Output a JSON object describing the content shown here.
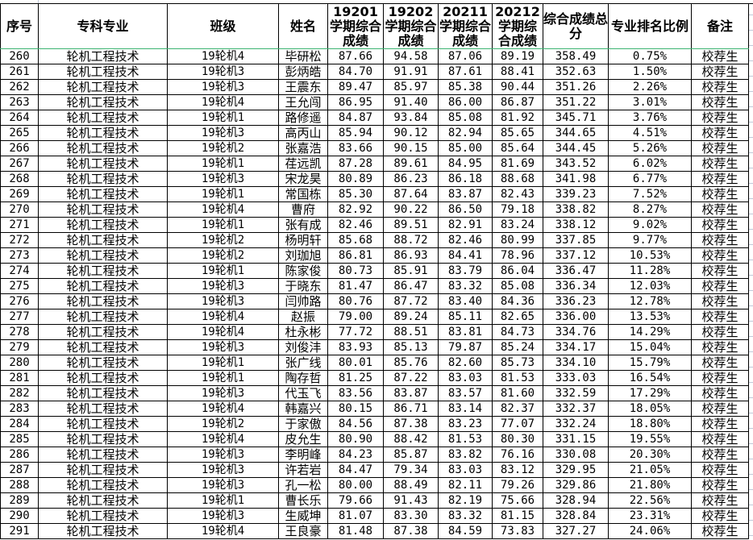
{
  "headers": [
    "序号",
    "专科专业",
    "班级",
    "姓名",
    "19201学期综合成绩",
    "19202学期综合成绩",
    "20211学期综合成绩",
    "20212学期综合成绩",
    "综合成绩总分",
    "专业排名比例",
    "备注"
  ],
  "rows": [
    [
      "260",
      "轮机工程技术",
      "19轮机4",
      "毕研松",
      "87.66",
      "94.58",
      "87.06",
      "89.19",
      "358.49",
      "0.75%",
      "校荐生"
    ],
    [
      "261",
      "轮机工程技术",
      "19轮机3",
      "彭炳皓",
      "84.70",
      "91.91",
      "87.61",
      "88.41",
      "352.63",
      "1.50%",
      "校荐生"
    ],
    [
      "262",
      "轮机工程技术",
      "19轮机3",
      "王震东",
      "89.47",
      "85.97",
      "85.38",
      "90.44",
      "351.26",
      "2.26%",
      "校荐生"
    ],
    [
      "263",
      "轮机工程技术",
      "19轮机4",
      "王允闯",
      "86.95",
      "91.40",
      "86.00",
      "86.87",
      "351.22",
      "3.01%",
      "校荐生"
    ],
    [
      "264",
      "轮机工程技术",
      "19轮机1",
      "路修遥",
      "84.87",
      "93.84",
      "85.08",
      "81.92",
      "345.71",
      "3.76%",
      "校荐生"
    ],
    [
      "265",
      "轮机工程技术",
      "19轮机3",
      "高丙山",
      "85.94",
      "90.12",
      "82.94",
      "85.65",
      "344.65",
      "4.51%",
      "校荐生"
    ],
    [
      "266",
      "轮机工程技术",
      "19轮机2",
      "张嘉浩",
      "83.66",
      "90.15",
      "85.00",
      "85.64",
      "344.45",
      "5.26%",
      "校荐生"
    ],
    [
      "267",
      "轮机工程技术",
      "19轮机1",
      "荏远凯",
      "87.28",
      "89.61",
      "84.95",
      "81.69",
      "343.52",
      "6.02%",
      "校荐生"
    ],
    [
      "268",
      "轮机工程技术",
      "19轮机3",
      "宋龙昊",
      "80.89",
      "86.23",
      "86.18",
      "88.68",
      "341.98",
      "6.77%",
      "校荐生"
    ],
    [
      "269",
      "轮机工程技术",
      "19轮机1",
      "常国栋",
      "85.30",
      "87.64",
      "83.87",
      "82.43",
      "339.23",
      "7.52%",
      "校荐生"
    ],
    [
      "270",
      "轮机工程技术",
      "19轮机4",
      "曹府",
      "82.92",
      "90.22",
      "86.50",
      "79.18",
      "338.82",
      "8.27%",
      "校荐生"
    ],
    [
      "271",
      "轮机工程技术",
      "19轮机1",
      "张有成",
      "82.46",
      "89.51",
      "82.91",
      "83.24",
      "338.12",
      "9.02%",
      "校荐生"
    ],
    [
      "272",
      "轮机工程技术",
      "19轮机2",
      "杨明轩",
      "85.68",
      "88.72",
      "82.46",
      "80.99",
      "337.85",
      "9.77%",
      "校荐生"
    ],
    [
      "273",
      "轮机工程技术",
      "19轮机2",
      "刘珈旭",
      "86.81",
      "86.93",
      "84.41",
      "78.96",
      "337.12",
      "10.53%",
      "校荐生"
    ],
    [
      "274",
      "轮机工程技术",
      "19轮机1",
      "陈家俊",
      "80.73",
      "85.91",
      "83.79",
      "86.04",
      "336.47",
      "11.28%",
      "校荐生"
    ],
    [
      "275",
      "轮机工程技术",
      "19轮机3",
      "于晓东",
      "81.47",
      "86.47",
      "83.32",
      "85.08",
      "336.34",
      "12.03%",
      "校荐生"
    ],
    [
      "276",
      "轮机工程技术",
      "19轮机3",
      "闫帅路",
      "80.76",
      "87.72",
      "83.40",
      "84.36",
      "336.23",
      "12.78%",
      "校荐生"
    ],
    [
      "277",
      "轮机工程技术",
      "19轮机4",
      "赵振",
      "79.00",
      "89.24",
      "85.11",
      "82.65",
      "336.00",
      "13.53%",
      "校荐生"
    ],
    [
      "278",
      "轮机工程技术",
      "19轮机4",
      "杜永彬",
      "77.72",
      "88.51",
      "83.81",
      "84.73",
      "334.76",
      "14.29%",
      "校荐生"
    ],
    [
      "279",
      "轮机工程技术",
      "19轮机3",
      "刘俊沣",
      "83.93",
      "85.13",
      "79.87",
      "85.24",
      "334.17",
      "15.04%",
      "校荐生"
    ],
    [
      "280",
      "轮机工程技术",
      "19轮机1",
      "张广线",
      "80.01",
      "85.76",
      "82.60",
      "85.73",
      "334.10",
      "15.79%",
      "校荐生"
    ],
    [
      "281",
      "轮机工程技术",
      "19轮机1",
      "陶存哲",
      "81.25",
      "87.22",
      "83.03",
      "81.53",
      "333.03",
      "16.54%",
      "校荐生"
    ],
    [
      "282",
      "轮机工程技术",
      "19轮机3",
      "代玉飞",
      "83.56",
      "83.87",
      "83.57",
      "81.60",
      "332.59",
      "17.29%",
      "校荐生"
    ],
    [
      "283",
      "轮机工程技术",
      "19轮机4",
      "韩嘉兴",
      "80.15",
      "86.71",
      "83.14",
      "82.37",
      "332.37",
      "18.05%",
      "校荐生"
    ],
    [
      "284",
      "轮机工程技术",
      "19轮机2",
      "于家傲",
      "84.56",
      "87.38",
      "83.23",
      "77.07",
      "332.24",
      "18.80%",
      "校荐生"
    ],
    [
      "285",
      "轮机工程技术",
      "19轮机4",
      "皮允生",
      "80.90",
      "88.42",
      "81.53",
      "80.30",
      "331.15",
      "19.55%",
      "校荐生"
    ],
    [
      "286",
      "轮机工程技术",
      "19轮机3",
      "李明峰",
      "84.23",
      "85.87",
      "83.82",
      "76.16",
      "330.08",
      "20.30%",
      "校荐生"
    ],
    [
      "287",
      "轮机工程技术",
      "19轮机3",
      "许若岩",
      "84.47",
      "79.34",
      "83.03",
      "83.12",
      "329.95",
      "21.05%",
      "校荐生"
    ],
    [
      "288",
      "轮机工程技术",
      "19轮机3",
      "孔一松",
      "80.00",
      "88.49",
      "82.11",
      "79.26",
      "329.86",
      "21.80%",
      "校荐生"
    ],
    [
      "289",
      "轮机工程技术",
      "19轮机1",
      "曹长乐",
      "79.66",
      "91.43",
      "82.19",
      "75.66",
      "328.94",
      "22.56%",
      "校荐生"
    ],
    [
      "290",
      "轮机工程技术",
      "19轮机3",
      "生威坤",
      "81.07",
      "83.30",
      "83.32",
      "81.15",
      "328.84",
      "23.31%",
      "校荐生"
    ],
    [
      "291",
      "轮机工程技术",
      "19轮机4",
      "王良豪",
      "81.48",
      "87.38",
      "84.59",
      "73.83",
      "327.27",
      "24.06%",
      "校荐生"
    ]
  ]
}
